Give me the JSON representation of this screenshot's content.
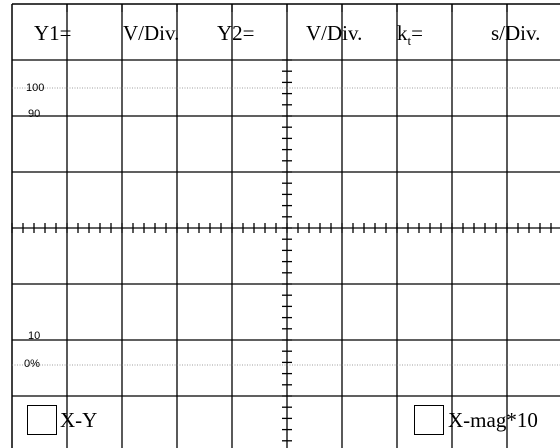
{
  "header": {
    "y1_label": "Y1=",
    "y1_unit": "V/Div.",
    "y2_label": "Y2=",
    "y2_unit": "V/Div.",
    "kt_label_k": "k",
    "kt_label_sub": "t",
    "kt_label_eq": "=",
    "kt_unit": "s/Div."
  },
  "levels": {
    "l100": "100",
    "l90": "90",
    "l10": "10",
    "l0": "0%"
  },
  "controls": {
    "xy_label": "X-Y",
    "xmag_label": "X-mag*10"
  },
  "colors": {
    "grid": "#000000",
    "dotted": "#808080",
    "background": "#ffffff"
  }
}
